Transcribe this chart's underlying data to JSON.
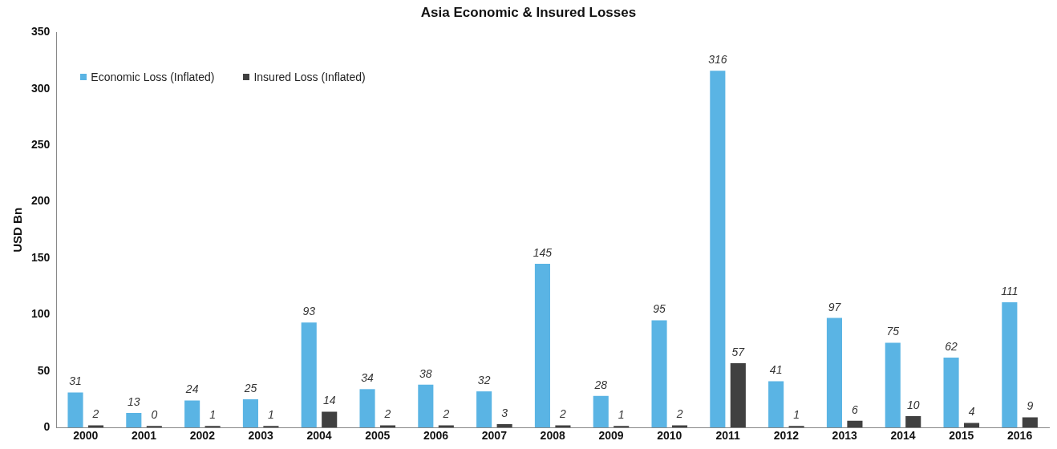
{
  "chart_data": {
    "type": "bar",
    "title": "Asia Economic & Insured Losses",
    "ylabel": "USD Bn",
    "categories": [
      "2000",
      "2001",
      "2002",
      "2003",
      "2004",
      "2005",
      "2006",
      "2007",
      "2008",
      "2009",
      "2010",
      "2011",
      "2012",
      "2013",
      "2014",
      "2015",
      "2016"
    ],
    "series": [
      {
        "name": "Economic Loss (Inflated)",
        "color": "#5ab4e4",
        "values": [
          31,
          13,
          24,
          25,
          93,
          34,
          38,
          32,
          145,
          28,
          95,
          316,
          41,
          97,
          75,
          62,
          111
        ]
      },
      {
        "name": "Insured Loss (Inflated)",
        "color": "#404040",
        "values": [
          2,
          0,
          1,
          1,
          14,
          2,
          2,
          3,
          2,
          1,
          2,
          57,
          1,
          6,
          10,
          4,
          9
        ]
      }
    ],
    "ylim": [
      0,
      350
    ],
    "yticks": [
      0,
      50,
      100,
      150,
      200,
      250,
      300,
      350
    ],
    "grid": false,
    "legend": "top left",
    "data_labels": true
  }
}
